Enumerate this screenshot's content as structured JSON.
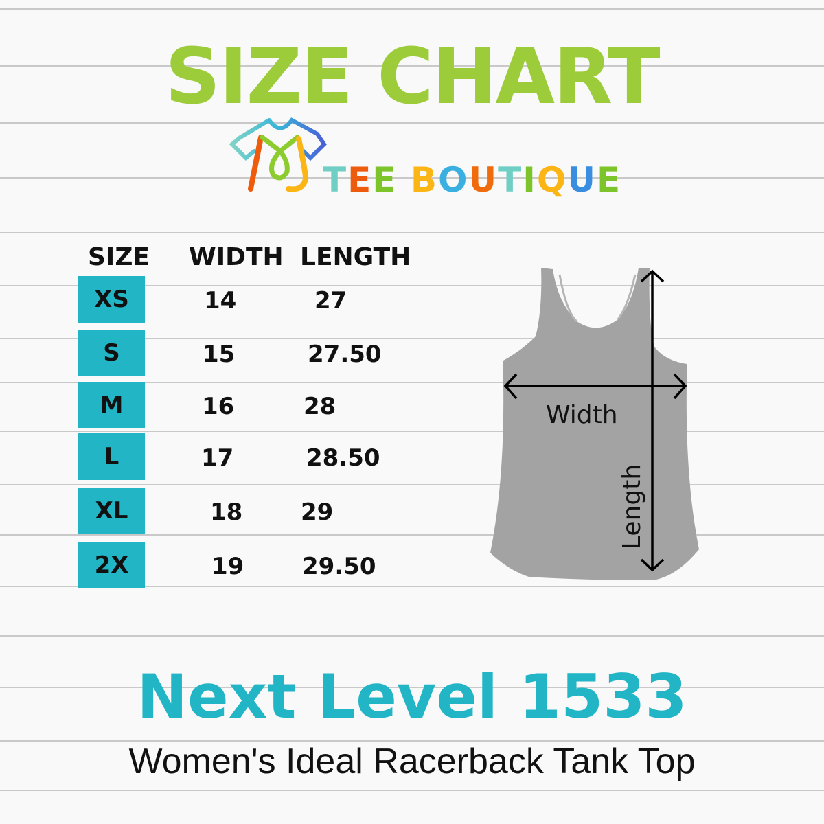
{
  "title": "SIZE CHART",
  "brand": {
    "logo_text": "TEE BOUTIQUE",
    "logo_icon": "rainbow-tshirt-icon"
  },
  "table": {
    "headers": [
      "SIZE",
      "WIDTH",
      "LENGTH"
    ],
    "rows": [
      {
        "size": "XS",
        "width": "14",
        "length": "27"
      },
      {
        "size": "S",
        "width": "15",
        "length": "27.50"
      },
      {
        "size": "M",
        "width": "16",
        "length": "28"
      },
      {
        "size": "L",
        "width": "17",
        "length": "28.50"
      },
      {
        "size": "XL",
        "width": "18",
        "length": "29"
      },
      {
        "size": "2X",
        "width": "19",
        "length": "29.50"
      }
    ]
  },
  "diagram": {
    "width_label": "Width",
    "length_label": "Length"
  },
  "model": "Next Level 1533",
  "description": "Women's Ideal Racerback Tank Top",
  "colors": {
    "title": "#9dcc3b",
    "badge": "#22b5c6",
    "model": "#22b5c6",
    "tank": "#a3a3a3",
    "background": "#f9f9f9"
  }
}
